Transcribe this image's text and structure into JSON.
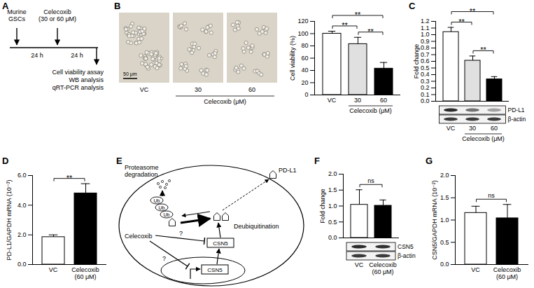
{
  "A": {
    "panel": "A",
    "start": [
      "Murine",
      "GSCs"
    ],
    "treatment": [
      "Celecoxib",
      "(30 or 60 μM)"
    ],
    "intervals": [
      "24 h",
      "24 h"
    ],
    "readouts": [
      "Cell viability assay",
      "WB analysis",
      "qRT-PCR analysis"
    ]
  },
  "B_images": {
    "categories": [
      "VC",
      "30",
      "60"
    ],
    "xgroup": {
      "label": "Celecoxib (μM)",
      "categories": [
        "30",
        "60"
      ]
    },
    "scale_bar": "50 μm"
  },
  "E": {
    "panel": "E",
    "fate": [
      "Proteasome",
      "degradation"
    ],
    "ubiquitin": [
      "Ub",
      "Ub",
      "Ub"
    ],
    "target": "PD-L1",
    "process": "Deubiquitination",
    "drug": "Celecoxib",
    "regulator": "CSN5",
    "gene": "CSN5",
    "unknown": [
      "?",
      "?"
    ]
  },
  "chart_data": [
    {
      "panel": "B",
      "type": "bar",
      "categories": [
        "VC",
        "30",
        "60"
      ],
      "values": [
        100,
        83,
        43
      ],
      "errors": [
        4,
        11,
        10
      ],
      "colors": [
        "#ffffff",
        "#e0e0e0",
        "#000000"
      ],
      "ylabel": "Cell viability (%)",
      "xgroup": {
        "label": "Celecoxib (μM)",
        "categories": [
          "30",
          "60"
        ]
      },
      "ylim": [
        0,
        120
      ],
      "yticks": [
        0,
        20,
        40,
        60,
        80,
        100,
        120
      ],
      "significance": [
        {
          "from": "VC",
          "to": "30",
          "label": "**"
        },
        {
          "from": "30",
          "to": "60",
          "label": "**"
        },
        {
          "from": "VC",
          "to": "60",
          "label": "**"
        }
      ]
    },
    {
      "panel": "C",
      "type": "bar",
      "categories": [
        "VC",
        "30",
        "60"
      ],
      "values": [
        1.04,
        0.61,
        0.33
      ],
      "errors": [
        0.07,
        0.07,
        0.04
      ],
      "colors": [
        "#ffffff",
        "#e0e0e0",
        "#000000"
      ],
      "ylabel": "Fold change",
      "xgroup": {
        "label": "Celecoxib (μM)",
        "categories": [
          "30",
          "60"
        ]
      },
      "blot": [
        "PD-L1",
        "β-actin"
      ],
      "ylim": [
        0,
        1.2
      ],
      "yticks": [
        {
          "value": 0,
          "label": "0.0"
        },
        {
          "value": 0.1,
          "label": "0.1"
        },
        {
          "value": 0.2,
          "label": "0.2"
        },
        {
          "value": 0.3,
          "label": "0.3"
        },
        {
          "value": 0.4,
          "label": "0.4"
        },
        {
          "value": 0.5,
          "label": "0.5"
        },
        {
          "value": 0.6,
          "label": "0.6"
        },
        {
          "value": 0.7,
          "label": "0.7"
        },
        {
          "value": 0.8,
          "label": "0.8"
        },
        {
          "value": 0.9,
          "label": "0.9"
        },
        {
          "value": 1,
          "label": "1.0"
        },
        {
          "value": 1.1,
          "label": "1.1"
        },
        {
          "value": 1.2,
          "label": "1.2"
        }
      ],
      "significance": [
        {
          "from": "VC",
          "to": "30",
          "label": "**"
        },
        {
          "from": "30",
          "to": "60",
          "label": "**"
        },
        {
          "from": "VC",
          "to": "60",
          "label": "**"
        }
      ]
    },
    {
      "panel": "D",
      "type": "bar",
      "categories": [
        "VC",
        "Celecoxib (60 μM)"
      ],
      "values": [
        1.85,
        4.8
      ],
      "errors": [
        0.15,
        0.65
      ],
      "colors": [
        "#ffffff",
        "#000000"
      ],
      "ylabel": "PD-L1/GAPDH mRNA (10⁻³)",
      "ylim": [
        0,
        6
      ],
      "yticks": [
        {
          "value": 0,
          "label": "0.0"
        },
        {
          "value": 2,
          "label": "2.0"
        },
        {
          "value": 4,
          "label": "4.0"
        },
        {
          "value": 6,
          "label": "6.0"
        }
      ],
      "significance": [
        {
          "from": "VC",
          "to": "Celecoxib (60 μM)",
          "label": "**"
        }
      ]
    },
    {
      "panel": "F",
      "type": "bar",
      "categories": [
        "VC",
        "Celecoxib (60 μM)"
      ],
      "values": [
        1.04,
        1.01
      ],
      "errors": [
        0.47,
        0.18
      ],
      "colors": [
        "#ffffff",
        "#000000"
      ],
      "ylabel": "Fold change",
      "blot": [
        "CSN5",
        "β-actin"
      ],
      "ylim": [
        0,
        2
      ],
      "yticks": [
        {
          "value": 0,
          "label": "0.0"
        },
        {
          "value": 0.5,
          "label": "0.5"
        },
        {
          "value": 1,
          "label": "1.0"
        },
        {
          "value": 1.5,
          "label": "1.5"
        },
        {
          "value": 2,
          "label": "2.0"
        }
      ],
      "significance": [
        {
          "from": "VC",
          "to": "Celecoxib (60 μM)",
          "label": "ns"
        }
      ]
    },
    {
      "panel": "G",
      "type": "bar",
      "categories": [
        "VC",
        "Celecoxib (60 μM)"
      ],
      "values": [
        1.16,
        1.04
      ],
      "errors": [
        0.15,
        0.31
      ],
      "colors": [
        "#ffffff",
        "#000000"
      ],
      "ylabel": "CSN5/GAPDH mRNA (10⁻²)",
      "ylim": [
        0,
        2
      ],
      "yticks": [
        {
          "value": 0,
          "label": "0.0"
        },
        {
          "value": 0.5,
          "label": "0.5"
        },
        {
          "value": 1,
          "label": "1.0"
        },
        {
          "value": 1.5,
          "label": "1.5"
        },
        {
          "value": 2,
          "label": "2.0"
        }
      ],
      "significance": [
        {
          "from": "VC",
          "to": "Celecoxib (60 μM)",
          "label": "ns"
        }
      ]
    }
  ]
}
